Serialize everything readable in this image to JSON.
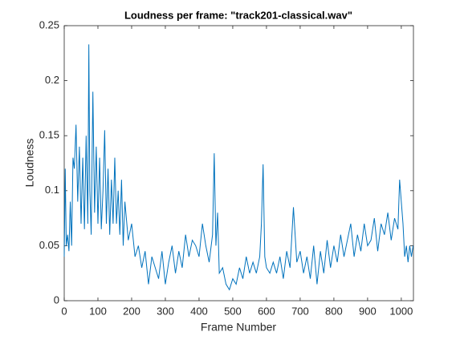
{
  "chart_data": {
    "type": "line",
    "title": "Loudness per frame: \"track201-classical.wav\"",
    "x_label": "Frame Number",
    "y_label": "Loudness",
    "xlim": [
      0,
      1036
    ],
    "ylim": [
      0,
      0.25
    ],
    "xticks": [
      0,
      100,
      200,
      300,
      400,
      500,
      600,
      700,
      800,
      900,
      1000
    ],
    "yticks": [
      0,
      0.05,
      0.1,
      0.15,
      0.2,
      0.25
    ],
    "x": [
      0,
      3,
      6,
      10,
      14,
      18,
      22,
      26,
      30,
      35,
      40,
      45,
      50,
      55,
      60,
      65,
      70,
      73,
      76,
      80,
      85,
      90,
      95,
      100,
      105,
      110,
      115,
      120,
      125,
      130,
      135,
      140,
      145,
      150,
      155,
      160,
      165,
      170,
      175,
      180,
      190,
      200,
      210,
      220,
      230,
      240,
      250,
      260,
      270,
      280,
      290,
      300,
      310,
      320,
      330,
      340,
      350,
      360,
      370,
      380,
      390,
      400,
      410,
      420,
      430,
      440,
      445,
      450,
      455,
      460,
      470,
      480,
      490,
      500,
      510,
      520,
      530,
      540,
      550,
      560,
      570,
      580,
      585,
      590,
      595,
      600,
      610,
      620,
      630,
      640,
      650,
      660,
      670,
      680,
      690,
      700,
      710,
      720,
      730,
      740,
      750,
      760,
      770,
      780,
      790,
      800,
      810,
      820,
      830,
      840,
      850,
      860,
      870,
      880,
      890,
      900,
      910,
      920,
      930,
      940,
      950,
      960,
      970,
      980,
      990,
      995,
      1000,
      1005,
      1010,
      1015,
      1020,
      1025,
      1030,
      1035
    ],
    "series": [
      {
        "name": "Loudness",
        "color": "#0072BD",
        "values": [
          0.04,
          0.12,
          0.05,
          0.06,
          0.045,
          0.09,
          0.05,
          0.13,
          0.12,
          0.16,
          0.09,
          0.14,
          0.07,
          0.13,
          0.065,
          0.15,
          0.07,
          0.233,
          0.1,
          0.06,
          0.19,
          0.08,
          0.14,
          0.07,
          0.13,
          0.065,
          0.1,
          0.155,
          0.07,
          0.12,
          0.06,
          0.11,
          0.07,
          0.13,
          0.07,
          0.1,
          0.06,
          0.11,
          0.05,
          0.09,
          0.055,
          0.07,
          0.04,
          0.05,
          0.03,
          0.045,
          0.015,
          0.04,
          0.03,
          0.02,
          0.045,
          0.015,
          0.035,
          0.05,
          0.025,
          0.045,
          0.03,
          0.06,
          0.04,
          0.055,
          0.05,
          0.04,
          0.07,
          0.05,
          0.035,
          0.06,
          0.134,
          0.05,
          0.08,
          0.025,
          0.03,
          0.015,
          0.01,
          0.02,
          0.015,
          0.03,
          0.02,
          0.04,
          0.025,
          0.035,
          0.025,
          0.04,
          0.07,
          0.124,
          0.04,
          0.03,
          0.025,
          0.035,
          0.025,
          0.04,
          0.02,
          0.045,
          0.03,
          0.085,
          0.035,
          0.045,
          0.025,
          0.04,
          0.02,
          0.05,
          0.015,
          0.045,
          0.025,
          0.055,
          0.03,
          0.05,
          0.035,
          0.06,
          0.04,
          0.055,
          0.07,
          0.04,
          0.06,
          0.045,
          0.07,
          0.05,
          0.055,
          0.075,
          0.045,
          0.07,
          0.06,
          0.08,
          0.055,
          0.075,
          0.065,
          0.11,
          0.09,
          0.07,
          0.04,
          0.05,
          0.035,
          0.05,
          0.04,
          0.05
        ]
      }
    ]
  }
}
